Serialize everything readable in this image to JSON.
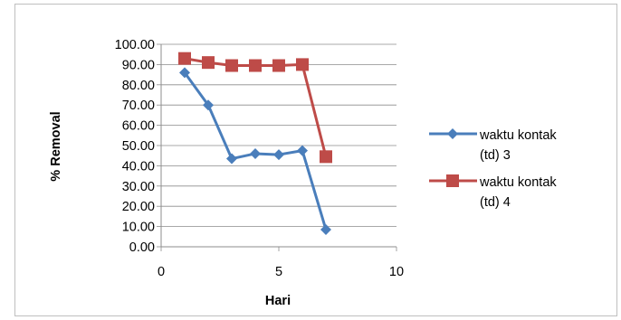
{
  "chart_data": {
    "type": "line",
    "xlabel": "Hari",
    "ylabel": "% Removal",
    "xlim": [
      0,
      10
    ],
    "ylim": [
      0,
      100
    ],
    "x_ticks": [
      "0",
      "5",
      "10"
    ],
    "y_ticks": [
      "0.00",
      "10.00",
      "20.00",
      "30.00",
      "40.00",
      "50.00",
      "60.00",
      "70.00",
      "80.00",
      "90.00",
      "100.00"
    ],
    "grid": true,
    "legend_position": "right",
    "series": [
      {
        "name": "waktu kontak (td) 3",
        "legend_lines": [
          "waktu kontak",
          "(td) 3"
        ],
        "color": "#4a7ebb",
        "marker": "diamond",
        "x": [
          1,
          2,
          3,
          4,
          5,
          6,
          7
        ],
        "y": [
          86.0,
          70.0,
          43.5,
          46.0,
          45.5,
          47.5,
          8.5
        ]
      },
      {
        "name": "waktu kontak (td) 4",
        "legend_lines": [
          "waktu kontak",
          "(td) 4"
        ],
        "color": "#be4b48",
        "marker": "square",
        "x": [
          1,
          2,
          3,
          4,
          5,
          6,
          7
        ],
        "y": [
          93.0,
          91.0,
          89.5,
          89.5,
          89.5,
          90.0,
          44.5
        ]
      }
    ]
  }
}
